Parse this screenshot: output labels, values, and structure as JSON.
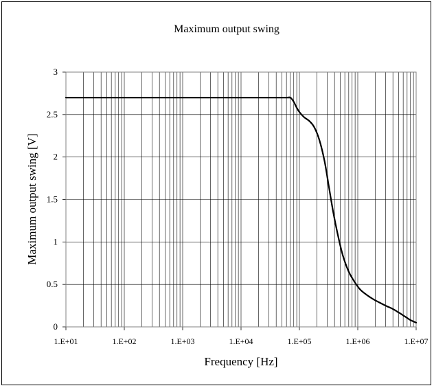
{
  "chart_data": {
    "type": "line",
    "title": "Maximum output swing",
    "xlabel": "Frequency [Hz]",
    "ylabel": "Maximum output swing [V]",
    "x_scale": "log",
    "xlim": [
      10,
      10000000
    ],
    "ylim": [
      0,
      3
    ],
    "x_tick_labels": [
      "1.E+01",
      "1.E+02",
      "1.E+03",
      "1.E+04",
      "1.E+05",
      "1.E+06",
      "1.E+07"
    ],
    "y_tick_labels": [
      "0",
      "0.5",
      "1",
      "1.5",
      "2",
      "2.5",
      "3"
    ],
    "grid": true,
    "legend": "none",
    "line_color": "#000000",
    "series": [
      {
        "x": [
          10,
          30000,
          60000,
          70000,
          80000,
          90000,
          100000,
          120000,
          150000,
          180000,
          220000,
          270000,
          320000,
          380000,
          450000,
          550000,
          700000,
          900000,
          1100000,
          1400000,
          1800000,
          2300000,
          3000000,
          4000000,
          5000000,
          6500000,
          8000000,
          10000000
        ],
        "y": [
          2.7,
          2.7,
          2.7,
          2.7,
          2.65,
          2.58,
          2.53,
          2.47,
          2.42,
          2.35,
          2.2,
          1.95,
          1.65,
          1.35,
          1.1,
          0.85,
          0.65,
          0.52,
          0.44,
          0.38,
          0.33,
          0.29,
          0.25,
          0.21,
          0.17,
          0.12,
          0.08,
          0.05
        ]
      }
    ]
  }
}
